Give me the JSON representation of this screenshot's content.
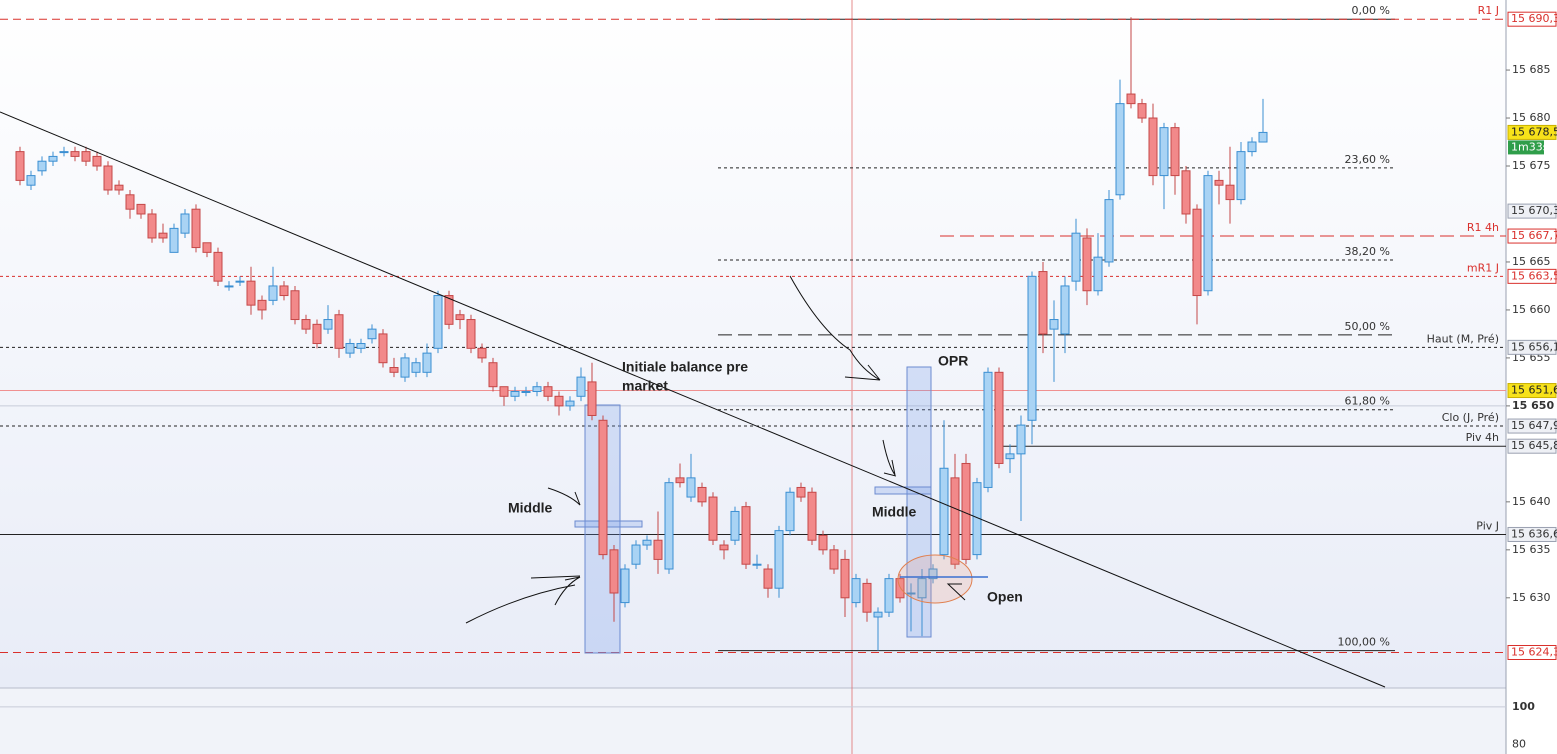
{
  "chart_data": {
    "type": "candlestick",
    "up_color": "#a9d3f4",
    "up_stroke": "#3b8fd2",
    "down_color": "#f2898a",
    "down_stroke": "#c44848",
    "ylim": [
      15620.6,
      15692.3
    ],
    "yticks": [
      {
        "value": 15685,
        "label": "15 685"
      },
      {
        "value": 15680,
        "label": "15 680"
      },
      {
        "value": 15675,
        "label": "15 675"
      },
      {
        "value": 15665,
        "label": "15 665"
      },
      {
        "value": 15660,
        "label": "15 660"
      },
      {
        "value": 15655,
        "label": "15 655"
      },
      {
        "value": 15650,
        "label": "15 650"
      },
      {
        "value": 15640,
        "label": "15 640"
      },
      {
        "value": 15635,
        "label": "15 635"
      },
      {
        "value": 15630,
        "label": "15 630"
      }
    ],
    "bold_tick": 15650,
    "candles": [
      [
        15676.5,
        15677,
        15673,
        15673.5
      ],
      [
        15673,
        15674.5,
        15672.5,
        15674
      ],
      [
        15674.5,
        15676,
        15674,
        15675.5
      ],
      [
        15675.5,
        15676.5,
        15675,
        15676
      ],
      [
        15676.5,
        15677,
        15676,
        15676.5
      ],
      [
        15676.5,
        15677,
        15675.5,
        15676
      ],
      [
        15676.5,
        15677,
        15675,
        15675.5
      ],
      [
        15676,
        15676.5,
        15674.5,
        15675
      ],
      [
        15675,
        15675.5,
        15672,
        15672.5
      ],
      [
        15673,
        15673.5,
        15672,
        15672.5
      ],
      [
        15672,
        15672.5,
        15669.5,
        15670.5
      ],
      [
        15671,
        15671,
        15669.5,
        15670
      ],
      [
        15670,
        15670.5,
        15667,
        15667.5
      ],
      [
        15668,
        15669,
        15667,
        15667.5
      ],
      [
        15666,
        15669,
        15666,
        15668.5
      ],
      [
        15668,
        15670.5,
        15667.5,
        15670
      ],
      [
        15670.5,
        15671,
        15666,
        15666.5
      ],
      [
        15667,
        15667,
        15665.5,
        15666
      ],
      [
        15666,
        15666.5,
        15662.5,
        15663
      ],
      [
        15662.5,
        15663,
        15662,
        15662.5
      ],
      [
        15663,
        15663.5,
        15662.5,
        15663
      ],
      [
        15663,
        15664.5,
        15659.5,
        15660.5
      ],
      [
        15661,
        15661.5,
        15659,
        15660
      ],
      [
        15661,
        15664.5,
        15660.5,
        15662.5
      ],
      [
        15662.5,
        15663,
        15661,
        15661.5
      ],
      [
        15662,
        15662.5,
        15658.5,
        15659
      ],
      [
        15659,
        15659.5,
        15657.5,
        15658
      ],
      [
        15658.5,
        15659,
        15656,
        15656.5
      ],
      [
        15658,
        15660.5,
        15657.5,
        15659
      ],
      [
        15659.5,
        15660,
        15655,
        15656
      ],
      [
        15655.5,
        15657,
        15655,
        15656.5
      ],
      [
        15656,
        15657,
        15655.5,
        15656.5
      ],
      [
        15657,
        15658.5,
        15656.5,
        15658
      ],
      [
        15657.5,
        15658,
        15654,
        15654.5
      ],
      [
        15654,
        15655,
        15653,
        15653.5
      ],
      [
        15653,
        15655.5,
        15652.5,
        15655
      ],
      [
        15653.5,
        15655,
        15653,
        15654.5
      ],
      [
        15653.5,
        15656.5,
        15653,
        15655.5
      ],
      [
        15656,
        15662,
        15655.5,
        15661.5
      ],
      [
        15661.5,
        15662,
        15658,
        15658.5
      ],
      [
        15659.5,
        15660,
        15658,
        15659
      ],
      [
        15659,
        15659.5,
        15655.5,
        15656
      ],
      [
        15656,
        15656.5,
        15654.5,
        15655
      ],
      [
        15654.5,
        15655,
        15651.5,
        15652
      ],
      [
        15652,
        15652,
        15650,
        15651
      ],
      [
        15651,
        15652,
        15650.5,
        15651.5
      ],
      [
        15651.5,
        15652,
        15651,
        15651.5
      ],
      [
        15651.5,
        15652.5,
        15651,
        15652
      ],
      [
        15652,
        15652.5,
        15650.5,
        15651
      ],
      [
        15651,
        15651.5,
        15649,
        15650
      ],
      [
        15650,
        15651,
        15649.5,
        15650.5
      ],
      [
        15651,
        15654,
        15650.5,
        15653
      ],
      [
        15652.5,
        15654.5,
        15648.5,
        15649
      ],
      [
        15648.5,
        15649,
        15634,
        15634.5
      ],
      [
        15635,
        15635.5,
        15627.5,
        15630.5
      ],
      [
        15629.5,
        15633.5,
        15629,
        15633
      ],
      [
        15633.5,
        15636,
        15633,
        15635.5
      ],
      [
        15635.5,
        15636.5,
        15635,
        15636
      ],
      [
        15636,
        15639,
        15632.5,
        15634
      ],
      [
        15633,
        15642.5,
        15632.5,
        15642
      ],
      [
        15642.5,
        15644,
        15641.5,
        15642
      ],
      [
        15640.5,
        15645,
        15640,
        15642.5
      ],
      [
        15641.5,
        15642,
        15639.5,
        15640
      ],
      [
        15640.5,
        15641,
        15635.5,
        15636
      ],
      [
        15635.5,
        15636,
        15634,
        15635
      ],
      [
        15636,
        15639.5,
        15635.5,
        15639
      ],
      [
        15639.5,
        15640,
        15633,
        15633.5
      ],
      [
        15633.5,
        15634.5,
        15633,
        15633.5
      ],
      [
        15633,
        15633.5,
        15630,
        15631
      ],
      [
        15631,
        15637.5,
        15630,
        15637
      ],
      [
        15637,
        15641.5,
        15636.5,
        15641
      ],
      [
        15641.5,
        15642,
        15640,
        15640.5
      ],
      [
        15641,
        15641.5,
        15635.5,
        15636
      ],
      [
        15636.5,
        15637,
        15634.5,
        15635
      ],
      [
        15635,
        15635.5,
        15632.5,
        15633
      ],
      [
        15634,
        15635,
        15628,
        15630
      ],
      [
        15629.5,
        15632.5,
        15629,
        15632
      ],
      [
        15631.5,
        15632,
        15627.5,
        15628.5
      ],
      [
        15628,
        15629,
        15624.5,
        15628.5
      ],
      [
        15628.5,
        15632.5,
        15628,
        15632
      ],
      [
        15632,
        15632.5,
        15629.5,
        15630
      ],
      [
        15630.5,
        15631.5,
        15626.5,
        15630.5
      ],
      [
        15630,
        15633,
        15626,
        15632
      ],
      [
        15632,
        15633.5,
        15631.5,
        15633
      ],
      [
        15634.5,
        15648.5,
        15634,
        15643.5
      ],
      [
        15642.5,
        15645,
        15633,
        15633.5
      ],
      [
        15644,
        15645,
        15633.5,
        15634
      ],
      [
        15634.5,
        15642.5,
        15634,
        15642
      ],
      [
        15641.5,
        15654,
        15641,
        15653.5
      ],
      [
        15653.5,
        15654,
        15643.5,
        15644
      ],
      [
        15644.5,
        15646,
        15643,
        15645
      ],
      [
        15645,
        15649,
        15638,
        15648
      ],
      [
        15648.5,
        15664,
        15646,
        15663.5
      ],
      [
        15664,
        15665,
        15655.5,
        15657.5
      ],
      [
        15658,
        15661,
        15652.5,
        15659
      ],
      [
        15657.5,
        15663.5,
        15655.5,
        15662.5
      ],
      [
        15663,
        15669.5,
        15662,
        15668
      ],
      [
        15667.5,
        15668.5,
        15660.5,
        15662
      ],
      [
        15662,
        15668,
        15661.5,
        15665.5
      ],
      [
        15665,
        15672.5,
        15664.5,
        15671.5
      ],
      [
        15672,
        15684,
        15671.5,
        15681.5
      ],
      [
        15682.5,
        15690.5,
        15681,
        15681.5
      ],
      [
        15681.5,
        15682,
        15679.5,
        15680
      ],
      [
        15680,
        15681.5,
        15673,
        15674
      ],
      [
        15674,
        15679.5,
        15670.5,
        15679
      ],
      [
        15679,
        15679.5,
        15672,
        15674
      ],
      [
        15674.5,
        15675,
        15669,
        15670
      ],
      [
        15670.5,
        15671,
        15658.5,
        15661.5
      ],
      [
        15662,
        15674.5,
        15661.5,
        15674
      ],
      [
        15673.5,
        15674.5,
        15671,
        15673
      ],
      [
        15673,
        15677,
        15669,
        15671.5
      ],
      [
        15671.5,
        15677.5,
        15671,
        15676.5
      ],
      [
        15676.5,
        15678,
        15676,
        15677.5
      ],
      [
        15677.5,
        15682,
        15677.5,
        15678.5
      ]
    ],
    "levels": [
      {
        "name": "R1 J",
        "value": 15690.3,
        "label": "15 690,3",
        "color": "#d9302c",
        "style": "dashed",
        "box": "red"
      },
      {
        "value": 15670.3,
        "label": "15 670,3",
        "color": "#888888",
        "style": "none",
        "box": "grey"
      },
      {
        "name": "R1 4h",
        "value": 15667.7,
        "label": "15 667,7",
        "color": "#d9302c",
        "style": "longdash",
        "box": "red"
      },
      {
        "name": "mR1 J",
        "value": 15663.5,
        "label": "15 663,5",
        "color": "#d9302c",
        "style": "dotted",
        "box": "red"
      },
      {
        "name": "Haut (M, Pré)",
        "value": 15656.1,
        "label": "15 656,1",
        "color": "#222222",
        "style": "dotted",
        "box": "grey"
      },
      {
        "value": 15651.6,
        "label": "15 651,6",
        "color": "#f09090",
        "style": "solid",
        "box": "yellow"
      },
      {
        "name": "Clo (J, Pré)",
        "value": 15647.9,
        "label": "15 647,9",
        "color": "#222222",
        "style": "dotted",
        "box": "grey"
      },
      {
        "name": "Piv 4h",
        "value": 15645.8,
        "label": "15 645,8",
        "color": "#222222",
        "style": "solid",
        "box": "grey"
      },
      {
        "name": "Piv J",
        "value": 15636.6,
        "label": "15 636,6",
        "color": "#222222",
        "style": "solid",
        "box": "grey"
      },
      {
        "value": 15624.3,
        "label": "15 624,3",
        "color": "#d9302c",
        "style": "dashed",
        "box": "red"
      }
    ],
    "current_price": {
      "value": 15678.5,
      "label": "15 678,5",
      "timer": "1m33s"
    },
    "fibonacci": [
      {
        "label": "0,00 %",
        "value": 15690.3,
        "style": "solid"
      },
      {
        "label": "23,60 %",
        "value": 15674.8,
        "style": "dotted"
      },
      {
        "label": "38,20 %",
        "value": 15665.2,
        "style": "dotted"
      },
      {
        "label": "50,00 %",
        "value": 15657.4,
        "style": "longdash"
      },
      {
        "label": "61,80 %",
        "value": 15649.6,
        "style": "dotted"
      },
      {
        "label": "100,00 %",
        "value": 15624.5,
        "style": "solid"
      }
    ],
    "annotations": [
      "Initiale balance pre",
      "market",
      "Middle",
      "Middle",
      "OPR",
      "Open"
    ],
    "lower_panel": {
      "ylim": [
        75,
        110
      ],
      "yticks": [
        100,
        80
      ]
    }
  }
}
